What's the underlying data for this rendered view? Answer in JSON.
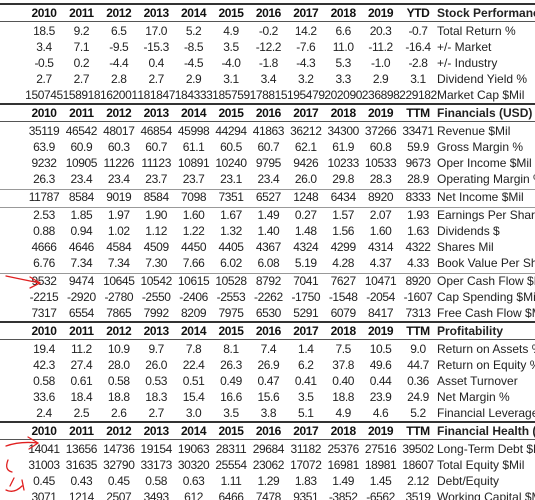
{
  "sections": [
    {
      "header": {
        "years": [
          "2010",
          "2011",
          "2012",
          "2013",
          "2014",
          "2015",
          "2016",
          "2017",
          "2018",
          "2019",
          "YTD"
        ],
        "title": "Stock Performance"
      },
      "groups": [
        [
          {
            "values": [
              "18.5",
              "9.2",
              "6.5",
              "17.0",
              "5.2",
              "4.9",
              "-0.2",
              "14.2",
              "6.6",
              "20.3",
              "-0.7"
            ],
            "label": "Total Return %"
          },
          {
            "values": [
              "3.4",
              "7.1",
              "-9.5",
              "-15.3",
              "-8.5",
              "3.5",
              "-12.2",
              "-7.6",
              "11.0",
              "-11.2",
              "-16.4"
            ],
            "label": "+/- Market"
          },
          {
            "values": [
              "-0.5",
              "0.2",
              "-4.4",
              "0.4",
              "-4.5",
              "-4.0",
              "-1.8",
              "-4.3",
              "5.3",
              "-1.0",
              "-2.8"
            ],
            "label": "+/- Industry"
          },
          {
            "values": [
              "2.7",
              "2.7",
              "2.8",
              "2.7",
              "2.9",
              "3.1",
              "3.4",
              "3.2",
              "3.3",
              "2.9",
              "3.1"
            ],
            "label": "Dividend Yield %"
          },
          {
            "values": [
              "150745",
              "158918",
              "162001",
              "181847",
              "184333",
              "185759",
              "178815",
              "195479",
              "202090",
              "236898",
              "229182"
            ],
            "label": "Market Cap $Mil"
          }
        ]
      ]
    },
    {
      "header": {
        "years": [
          "2010",
          "2011",
          "2012",
          "2013",
          "2014",
          "2015",
          "2016",
          "2017",
          "2018",
          "2019",
          "TTM"
        ],
        "title": "Financials (USD)"
      },
      "groups": [
        [
          {
            "values": [
              "35119",
              "46542",
              "48017",
              "46854",
              "45998",
              "44294",
              "41863",
              "36212",
              "34300",
              "37266",
              "33471"
            ],
            "label": "Revenue $Mil"
          },
          {
            "values": [
              "63.9",
              "60.9",
              "60.3",
              "60.7",
              "61.1",
              "60.5",
              "60.7",
              "62.1",
              "61.9",
              "60.8",
              "59.9"
            ],
            "label": "Gross Margin %"
          },
          {
            "values": [
              "9232",
              "10905",
              "11226",
              "11123",
              "10891",
              "10240",
              "9795",
              "9426",
              "10233",
              "10533",
              "9673"
            ],
            "label": "Oper Income $Mil"
          },
          {
            "values": [
              "26.3",
              "23.4",
              "23.4",
              "23.7",
              "23.7",
              "23.1",
              "23.4",
              "26.0",
              "29.8",
              "28.3",
              "28.9"
            ],
            "label": "Operating Margin %"
          }
        ],
        [
          {
            "values": [
              "11787",
              "8584",
              "9019",
              "8584",
              "7098",
              "7351",
              "6527",
              "1248",
              "6434",
              "8920",
              "8333"
            ],
            "label": "Net Income $Mil"
          }
        ],
        [
          {
            "values": [
              "2.53",
              "1.85",
              "1.97",
              "1.90",
              "1.60",
              "1.67",
              "1.49",
              "0.27",
              "1.57",
              "2.07",
              "1.93"
            ],
            "label": "Earnings Per Share $"
          },
          {
            "values": [
              "0.88",
              "0.94",
              "1.02",
              "1.12",
              "1.22",
              "1.32",
              "1.40",
              "1.48",
              "1.56",
              "1.60",
              "1.63"
            ],
            "label": "Dividends $"
          },
          {
            "values": [
              "4666",
              "4646",
              "4584",
              "4509",
              "4450",
              "4405",
              "4367",
              "4324",
              "4299",
              "4314",
              "4322"
            ],
            "label": "Shares Mil"
          },
          {
            "values": [
              "6.76",
              "7.34",
              "7.34",
              "7.30",
              "7.66",
              "6.02",
              "6.08",
              "5.19",
              "4.28",
              "4.37",
              "4.33"
            ],
            "label": "Book Value Per Share $"
          }
        ],
        [
          {
            "values": [
              "9532",
              "9474",
              "10645",
              "10542",
              "10615",
              "10528",
              "8792",
              "7041",
              "7627",
              "10471",
              "8920"
            ],
            "label": "Oper Cash Flow $Mil"
          },
          {
            "values": [
              "-2215",
              "-2920",
              "-2780",
              "-2550",
              "-2406",
              "-2553",
              "-2262",
              "-1750",
              "-1548",
              "-2054",
              "-1607"
            ],
            "label": "Cap Spending $Mil"
          },
          {
            "values": [
              "7317",
              "6554",
              "7865",
              "7992",
              "8209",
              "7975",
              "6530",
              "5291",
              "6079",
              "8417",
              "7313"
            ],
            "label": "Free Cash Flow $Mil"
          }
        ]
      ]
    },
    {
      "header": {
        "years": [
          "2010",
          "2011",
          "2012",
          "2013",
          "2014",
          "2015",
          "2016",
          "2017",
          "2018",
          "2019",
          "TTM"
        ],
        "title": "Profitability"
      },
      "groups": [
        [
          {
            "values": [
              "19.4",
              "11.2",
              "10.9",
              "9.7",
              "7.8",
              "8.1",
              "7.4",
              "1.4",
              "7.5",
              "10.5",
              "9.0"
            ],
            "label": "Return on Assets %"
          },
          {
            "values": [
              "42.3",
              "27.4",
              "28.0",
              "26.0",
              "22.4",
              "26.3",
              "26.9",
              "6.2",
              "37.8",
              "49.6",
              "44.7"
            ],
            "label": "Return on Equity %"
          },
          {
            "values": [
              "0.58",
              "0.61",
              "0.58",
              "0.53",
              "0.51",
              "0.49",
              "0.47",
              "0.41",
              "0.40",
              "0.44",
              "0.36"
            ],
            "label": "Asset Turnover"
          },
          {
            "values": [
              "33.6",
              "18.4",
              "18.8",
              "18.3",
              "15.4",
              "16.6",
              "15.6",
              "3.5",
              "18.8",
              "23.9",
              "24.9"
            ],
            "label": "Net Margin %"
          },
          {
            "values": [
              "2.4",
              "2.5",
              "2.6",
              "2.7",
              "3.0",
              "3.5",
              "3.8",
              "5.1",
              "4.9",
              "4.6",
              "5.2"
            ],
            "label": "Financial Leverage"
          }
        ]
      ]
    },
    {
      "header": {
        "years": [
          "2010",
          "2011",
          "2012",
          "2013",
          "2014",
          "2015",
          "2016",
          "2017",
          "2018",
          "2019",
          "TTM"
        ],
        "title": "Financial Health (USD)"
      },
      "groups": [
        [
          {
            "values": [
              "14041",
              "13656",
              "14736",
              "19154",
              "19063",
              "28311",
              "29684",
              "31182",
              "25376",
              "27516",
              "39502"
            ],
            "label": "Long-Term Debt $Mil"
          },
          {
            "values": [
              "31003",
              "31635",
              "32790",
              "33173",
              "30320",
              "25554",
              "23062",
              "17072",
              "16981",
              "18981",
              "18607"
            ],
            "label": "Total Equity $Mil"
          },
          {
            "values": [
              "0.45",
              "0.43",
              "0.45",
              "0.58",
              "0.63",
              "1.11",
              "1.29",
              "1.83",
              "1.49",
              "1.45",
              "2.12"
            ],
            "label": "Debt/Equity"
          },
          {
            "values": [
              "3071",
              "1214",
              "2507",
              "3493",
              "612",
              "6466",
              "7478",
              "9351",
              "-3852",
              "-6562",
              "3519"
            ],
            "label": "Working Capital $Mil"
          }
        ]
      ]
    }
  ]
}
